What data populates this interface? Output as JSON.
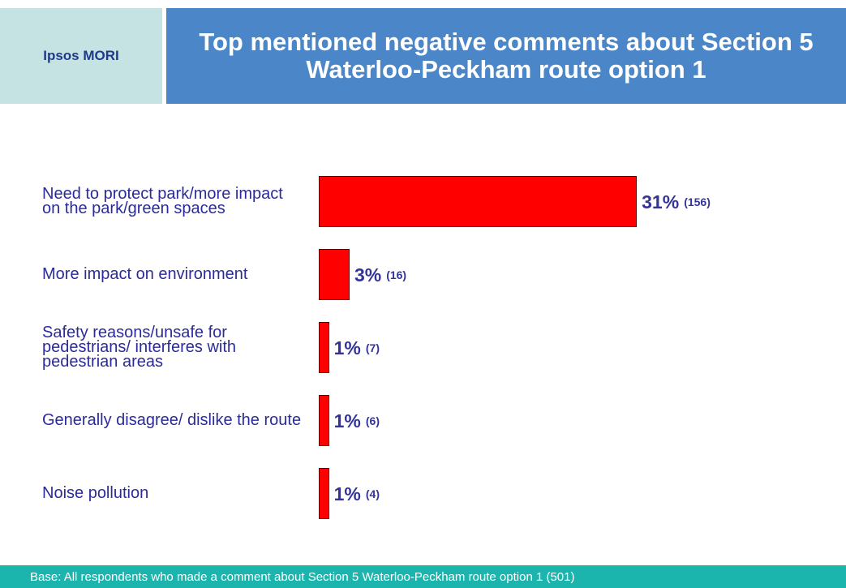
{
  "brand": "Ipsos MORI",
  "chart_data": {
    "type": "bar",
    "orientation": "horizontal",
    "title": "Top mentioned negative comments about Section 5 Waterloo-Peckham route option 1",
    "categories": [
      "Need to protect park/more impact on the park/green spaces",
      "More impact on environment",
      "Safety reasons/unsafe for pedestrians/ interferes with pedestrian areas",
      "Generally disagree/ dislike the route",
      "Noise pollution"
    ],
    "values": [
      31,
      3,
      1,
      1,
      1
    ],
    "value_labels": [
      "31%",
      "3%",
      "1%",
      "1%",
      "1%"
    ],
    "count_labels": [
      "(156)",
      "(16)",
      "(7)",
      "(6)",
      "(4)"
    ],
    "color": "#ff0000"
  },
  "footer": "Base: All respondents who made a comment about Section 5 Waterloo-Peckham route option 1 (501)"
}
